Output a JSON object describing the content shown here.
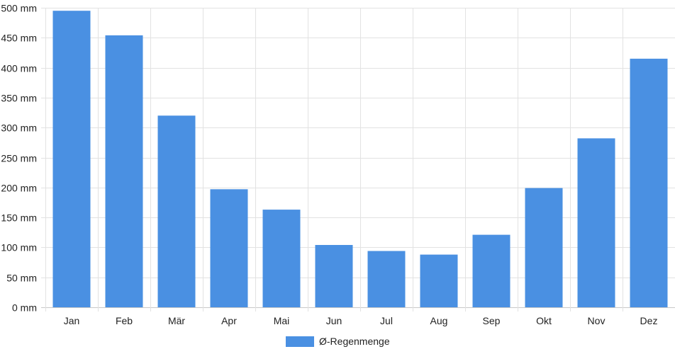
{
  "chart_data": {
    "type": "bar",
    "title": "",
    "xlabel": "",
    "ylabel": "",
    "categories": [
      "Jan",
      "Feb",
      "Mär",
      "Apr",
      "Mai",
      "Jun",
      "Jul",
      "Aug",
      "Sep",
      "Okt",
      "Nov",
      "Dez"
    ],
    "series": [
      {
        "name": "Ø-Regenmenge",
        "color": "#4a90e2",
        "values": [
          495,
          454,
          320,
          197,
          163,
          104,
          94,
          88,
          121,
          199,
          282,
          415
        ]
      }
    ],
    "ylim": [
      0,
      500
    ],
    "yticks": [
      "0 mm",
      "50 mm",
      "100 mm",
      "150 mm",
      "200 mm",
      "250 mm",
      "300 mm",
      "350 mm",
      "400 mm",
      "450 mm",
      "500 mm"
    ],
    "ytick_values": [
      0,
      50,
      100,
      150,
      200,
      250,
      300,
      350,
      400,
      450,
      500
    ],
    "grid": true,
    "legend_position": "bottom"
  }
}
